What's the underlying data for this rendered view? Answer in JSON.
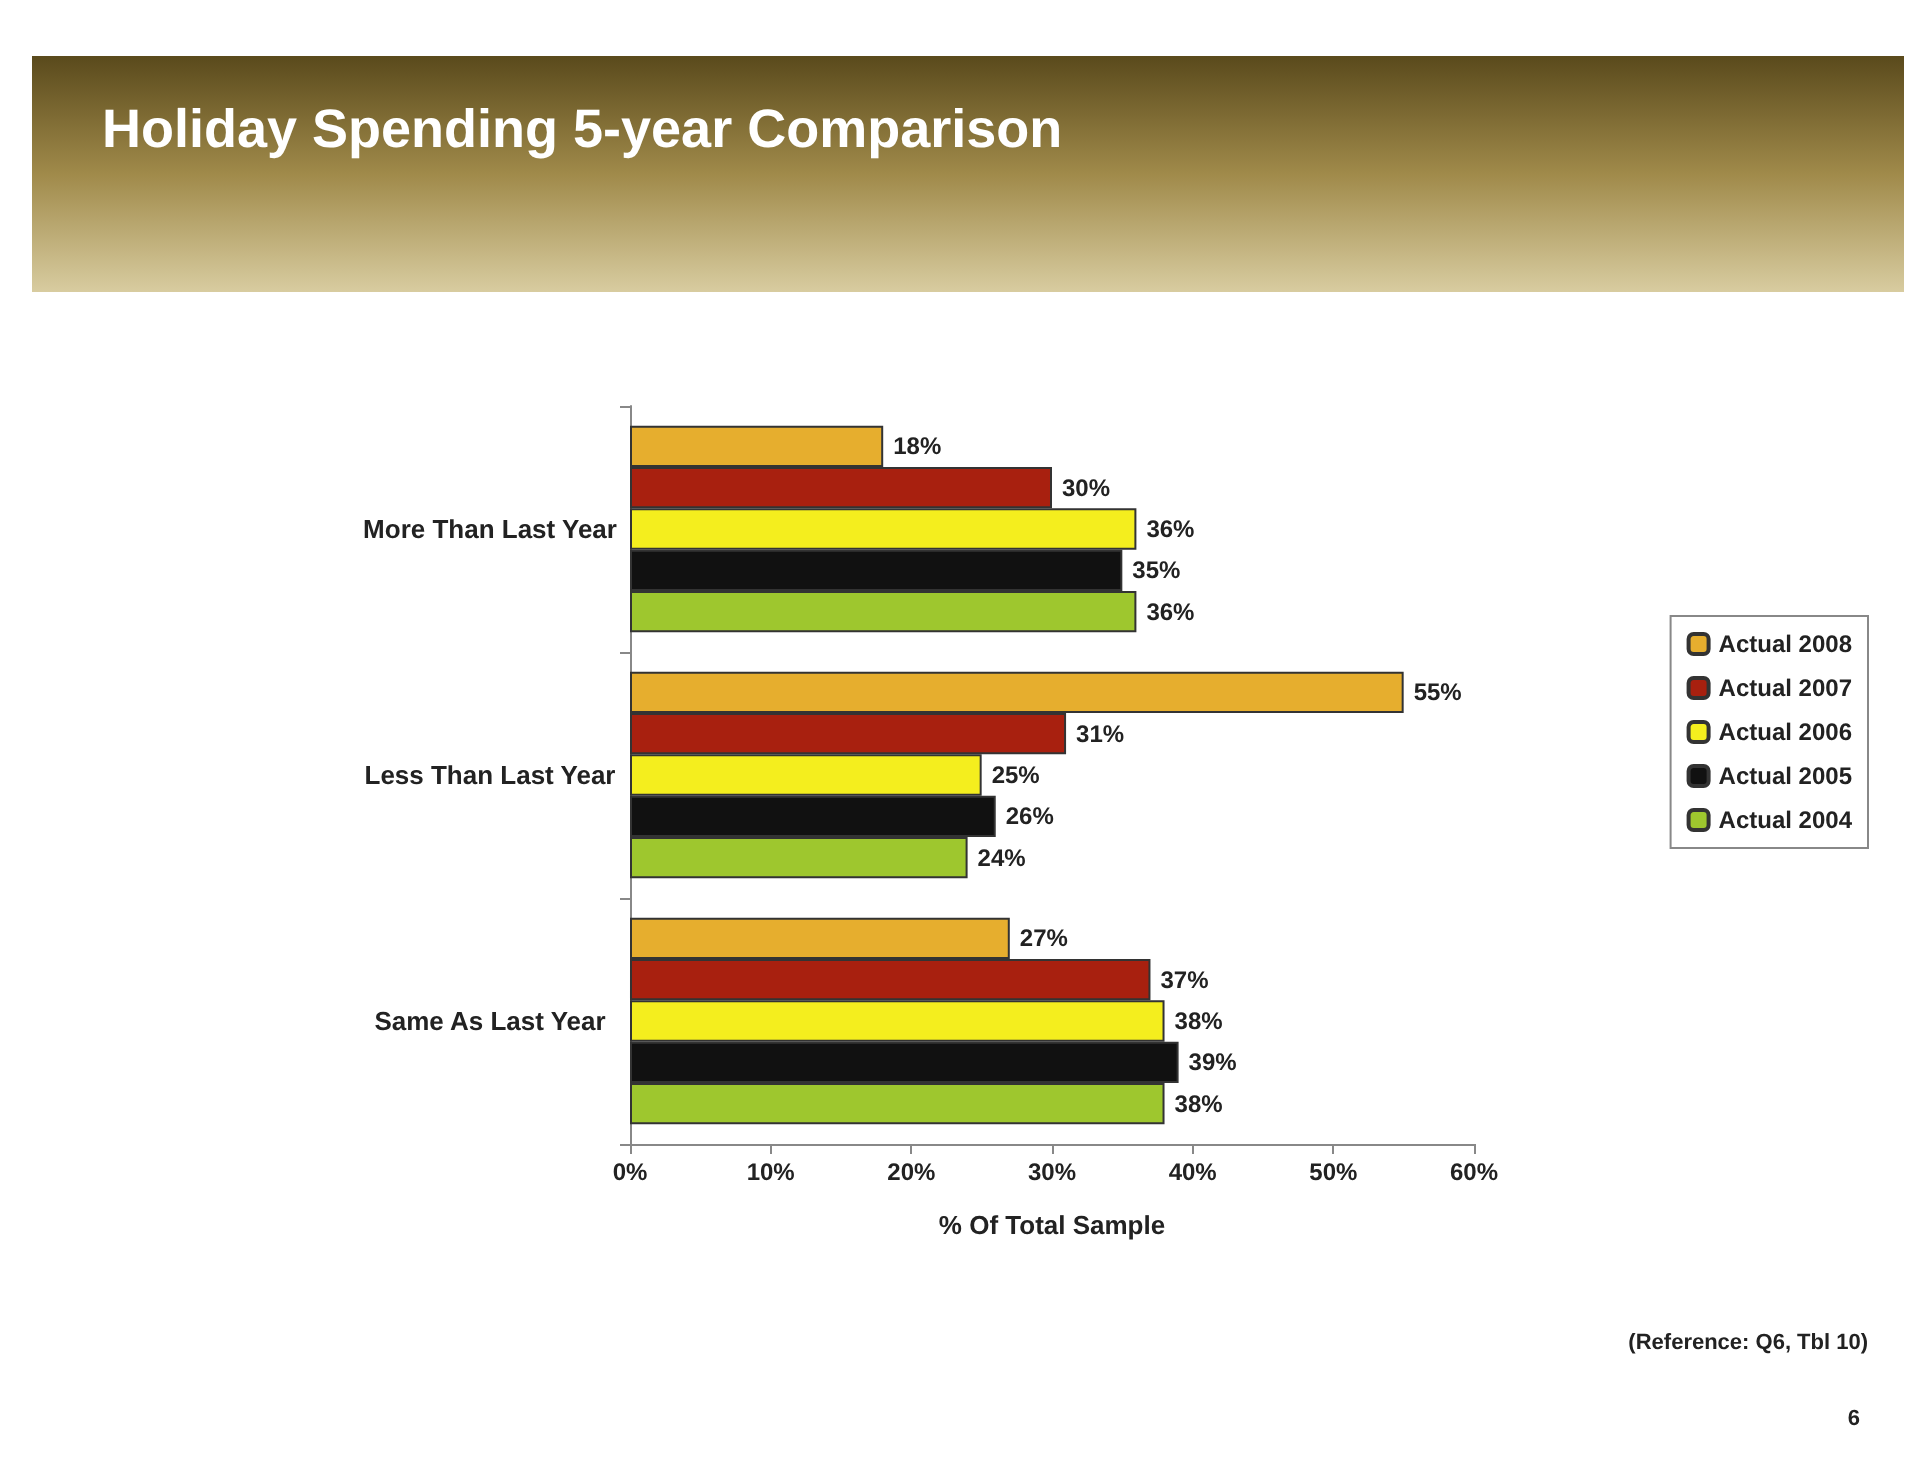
{
  "chart_data": {
    "type": "bar",
    "orientation": "horizontal",
    "title": "Holiday Spending 5-year Comparison",
    "xlabel": "% Of Total Sample",
    "categories": [
      "More Than Last Year",
      "Less Than Last Year",
      "Same As Last Year"
    ],
    "series": [
      {
        "name": "Actual 2008",
        "color": "#e6ae2e",
        "values": [
          18,
          55,
          27
        ],
        "value_labels": [
          "18%",
          "55%",
          "27%"
        ]
      },
      {
        "name": "Actual 2007",
        "color": "#a8200f",
        "values": [
          30,
          31,
          37
        ],
        "value_labels": [
          "30%",
          "31%",
          "37%"
        ]
      },
      {
        "name": "Actual 2006",
        "color": "#f4ee1e",
        "values": [
          36,
          25,
          38
        ],
        "value_labels": [
          "36%",
          "25%",
          "38%"
        ]
      },
      {
        "name": "Actual 2005",
        "color": "#111111",
        "values": [
          35,
          26,
          39
        ],
        "value_labels": [
          "35%",
          "26%",
          "39%"
        ]
      },
      {
        "name": "Actual 2004",
        "color": "#9ec72e",
        "values": [
          36,
          24,
          38
        ],
        "value_labels": [
          "36%",
          "24%",
          "38%"
        ]
      }
    ],
    "xlim": [
      0,
      60
    ],
    "xticks": [
      {
        "value": 0,
        "label": "0%"
      },
      {
        "value": 10,
        "label": "10%"
      },
      {
        "value": 20,
        "label": "20%"
      },
      {
        "value": 30,
        "label": "30%"
      },
      {
        "value": 40,
        "label": "40%"
      },
      {
        "value": 50,
        "label": "50%"
      },
      {
        "value": 60,
        "label": "60%"
      }
    ],
    "legend": "right",
    "grid": false,
    "annotations": [
      "(Reference: Q6, Tbl 10)",
      "6"
    ]
  }
}
